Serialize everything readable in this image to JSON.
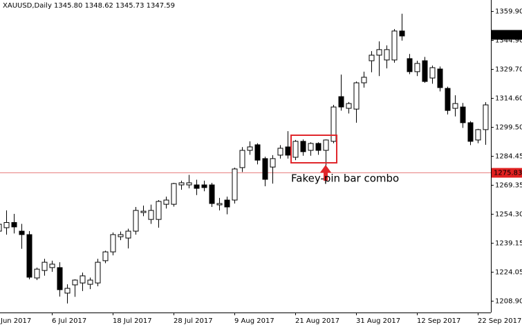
{
  "chart_data": {
    "type": "candlestick",
    "title": "XAUUSD,Daily  1345.80 1348.62 1345.73 1347.59",
    "categories": [
      "Jun 2017",
      null,
      null,
      null,
      null,
      null,
      null,
      "6 Jul 2017",
      null,
      null,
      null,
      null,
      null,
      null,
      null,
      "18 Jul 2017",
      null,
      null,
      null,
      null,
      null,
      null,
      null,
      "28 Jul 2017",
      null,
      null,
      null,
      null,
      null,
      null,
      null,
      "9 Aug 2017",
      null,
      null,
      null,
      null,
      null,
      null,
      null,
      "21 Aug 2017",
      null,
      null,
      null,
      null,
      null,
      null,
      null,
      "31 Aug 2017",
      null,
      null,
      null,
      null,
      null,
      null,
      null,
      "12 Sep 2017",
      null,
      null,
      null,
      null,
      null,
      null,
      null,
      "22 Sep 2017",
      null
    ],
    "open": [
      1245.2,
      1247.0,
      1249.7,
      1245.2,
      1243.4,
      1220.8,
      1224.7,
      1226.2,
      1226.2,
      1212.9,
      1217.2,
      1218.2,
      1217.5,
      1218.2,
      1229.8,
      1234.4,
      1242.3,
      1241.6,
      1245.2,
      1254.9,
      1251.3,
      1251.3,
      1259.2,
      1259.2,
      1269.3,
      1269.3,
      1269.3,
      1269.3,
      1269.3,
      1258.9,
      1261.4,
      1261.4,
      1278.3,
      1287.3,
      1290.2,
      1283.0,
      1278.6,
      1284.8,
      1289.1,
      1283.7,
      1292.0,
      1287.3,
      1290.9,
      1287.3,
      1292.0,
      1315.3,
      1309.2,
      1308.8,
      1322.5,
      1334.0,
      1336.9,
      1334.4,
      1334.4,
      1349.5,
      1335.1,
      1328.3,
      1334.0,
      1325.0,
      1329.7,
      1319.6,
      1309.2,
      1309.9,
      1301.7,
      1292.7,
      1298.1
    ],
    "high": [
      1251.0,
      1256.0,
      1254.2,
      1249.0,
      1245.2,
      1226.2,
      1230.8,
      1229.8,
      1229.0,
      1217.5,
      1220.1,
      1223.6,
      1221.0,
      1230.8,
      1235.0,
      1244.5,
      1245.0,
      1246.5,
      1257.8,
      1258.5,
      1259.0,
      1261.4,
      1263.2,
      1270.4,
      1271.5,
      1274.5,
      1272.0,
      1271.5,
      1270.4,
      1262.5,
      1263.2,
      1278.3,
      1289.0,
      1292.0,
      1291.0,
      1284.0,
      1284.8,
      1290.0,
      1297.3,
      1292.7,
      1293.0,
      1291.5,
      1291.5,
      1293.0,
      1311.0,
      1326.8,
      1312.5,
      1323.2,
      1328.3,
      1339.0,
      1344.1,
      1342.0,
      1350.5,
      1358.5,
      1337.5,
      1334.0,
      1336.0,
      1331.5,
      1331.0,
      1320.5,
      1316.0,
      1312.0,
      1302.5,
      1298.5,
      1312.4
    ],
    "low": [
      1242.0,
      1243.4,
      1244.0,
      1236.0,
      1220.1,
      1219.7,
      1222.0,
      1224.0,
      1211.1,
      1207.5,
      1211.0,
      1214.0,
      1215.0,
      1216.5,
      1228.5,
      1232.6,
      1240.5,
      1236.2,
      1243.4,
      1253.0,
      1249.0,
      1247.0,
      1257.0,
      1258.0,
      1266.8,
      1267.5,
      1264.0,
      1266.0,
      1257.8,
      1256.0,
      1254.0,
      1259.6,
      1276.0,
      1285.0,
      1280.0,
      1268.6,
      1270.0,
      1283.0,
      1283.0,
      1282.2,
      1284.5,
      1284.5,
      1285.0,
      1277.6,
      1291.0,
      1308.0,
      1306.5,
      1301.7,
      1320.0,
      1328.0,
      1326.0,
      1330.0,
      1333.0,
      1344.5,
      1327.0,
      1326.0,
      1322.5,
      1322.0,
      1318.0,
      1306.0,
      1305.0,
      1299.0,
      1290.0,
      1291.0,
      1290.2
    ],
    "close": [
      1248.8,
      1249.7,
      1247.4,
      1243.4,
      1221.2,
      1225.4,
      1229.0,
      1228.0,
      1214.7,
      1215.4,
      1219.7,
      1221.9,
      1219.7,
      1229.0,
      1234.4,
      1243.4,
      1243.4,
      1245.2,
      1256.0,
      1255.6,
      1256.0,
      1260.7,
      1261.4,
      1270.0,
      1270.4,
      1270.4,
      1267.5,
      1267.9,
      1259.6,
      1259.6,
      1257.8,
      1277.6,
      1287.3,
      1289.1,
      1282.2,
      1272.2,
      1283.0,
      1288.4,
      1284.8,
      1292.0,
      1286.6,
      1290.9,
      1287.3,
      1292.7,
      1309.9,
      1309.9,
      1311.7,
      1322.5,
      1325.4,
      1336.9,
      1339.8,
      1339.8,
      1349.5,
      1346.9,
      1328.3,
      1332.6,
      1323.2,
      1330.4,
      1320.0,
      1308.1,
      1311.7,
      1301.7,
      1292.0,
      1298.1,
      1311.0
    ],
    "up_color": "#ffffff",
    "down_color": "#000000",
    "ylim": [
      1202.8,
      1365.65
    ],
    "yticks": [
      {
        "value": 1359.9,
        "label": "1359.90"
      },
      {
        "value": 1344.9,
        "label": "1344.90"
      },
      {
        "value": 1329.7,
        "label": "1329.70"
      },
      {
        "value": 1314.6,
        "label": "1314.60"
      },
      {
        "value": 1299.5,
        "label": "1299.50"
      },
      {
        "value": 1284.45,
        "label": "1284.45"
      },
      {
        "value": 1269.35,
        "label": "1269.35"
      },
      {
        "value": 1254.3,
        "label": "1254.30"
      },
      {
        "value": 1239.15,
        "label": "1239.15"
      },
      {
        "value": 1224.05,
        "label": "1224.05"
      },
      {
        "value": 1208.9,
        "label": "1208.90"
      }
    ],
    "last_price": 1347.59,
    "level": {
      "value": 1275.83,
      "color": "#e88080",
      "label_color": "#e02020"
    },
    "annotation": {
      "text": "Fakey-pin bar combo",
      "color": "#e0262b"
    }
  }
}
